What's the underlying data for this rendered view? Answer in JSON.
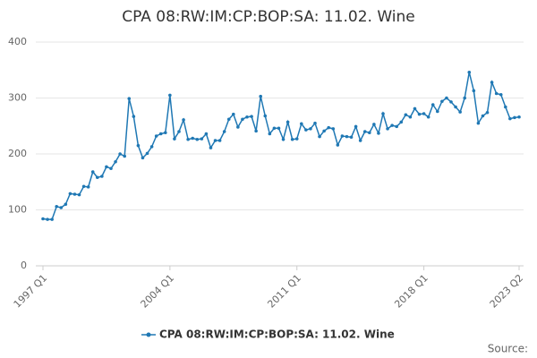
{
  "chart_data": {
    "type": "line",
    "title": "CPA 08:RW:IM:CP:BOP:SA: 11.02. Wine",
    "categories": [
      "1997 Q1",
      null,
      null,
      null,
      null,
      null,
      null,
      null,
      null,
      null,
      null,
      null,
      null,
      null,
      null,
      null,
      null,
      null,
      null,
      null,
      null,
      null,
      null,
      null,
      null,
      null,
      null,
      null,
      "2004 Q1",
      null,
      null,
      null,
      null,
      null,
      null,
      null,
      null,
      null,
      null,
      null,
      null,
      null,
      null,
      null,
      null,
      null,
      null,
      null,
      null,
      null,
      null,
      null,
      null,
      null,
      null,
      null,
      "2011 Q1",
      null,
      null,
      null,
      null,
      null,
      null,
      null,
      null,
      null,
      null,
      null,
      null,
      null,
      null,
      null,
      null,
      null,
      null,
      null,
      null,
      null,
      null,
      null,
      null,
      null,
      null,
      null,
      "2018 Q1",
      null,
      null,
      null,
      null,
      null,
      null,
      null,
      null,
      null,
      null,
      null,
      null,
      null,
      null,
      null,
      null,
      null,
      null,
      null,
      null,
      "2023 Q2"
    ],
    "series": [
      {
        "name": "CPA 08:RW:IM:CP:BOP:SA: 11.02. Wine",
        "color": "#1f78b4",
        "values": [
          84,
          83,
          83,
          106,
          104,
          110,
          129,
          128,
          127,
          142,
          141,
          168,
          158,
          160,
          177,
          174,
          186,
          200,
          196,
          299,
          267,
          215,
          193,
          201,
          213,
          232,
          236,
          238,
          305,
          227,
          240,
          261,
          226,
          228,
          226,
          227,
          236,
          211,
          224,
          224,
          240,
          262,
          271,
          248,
          262,
          266,
          267,
          241,
          303,
          268,
          236,
          246,
          246,
          226,
          257,
          226,
          227,
          254,
          243,
          245,
          255,
          231,
          241,
          247,
          245,
          216,
          232,
          231,
          230,
          249,
          224,
          240,
          238,
          253,
          237,
          272,
          245,
          251,
          249,
          257,
          270,
          266,
          281,
          271,
          272,
          266,
          288,
          276,
          294,
          300,
          293,
          284,
          275,
          300,
          346,
          313,
          255,
          268,
          274,
          328,
          308,
          306,
          284,
          263,
          265,
          266
        ]
      }
    ],
    "ylim": [
      0,
      400
    ],
    "yticks": [
      0,
      100,
      200,
      300,
      400
    ],
    "grid": true,
    "source": "Source:"
  }
}
